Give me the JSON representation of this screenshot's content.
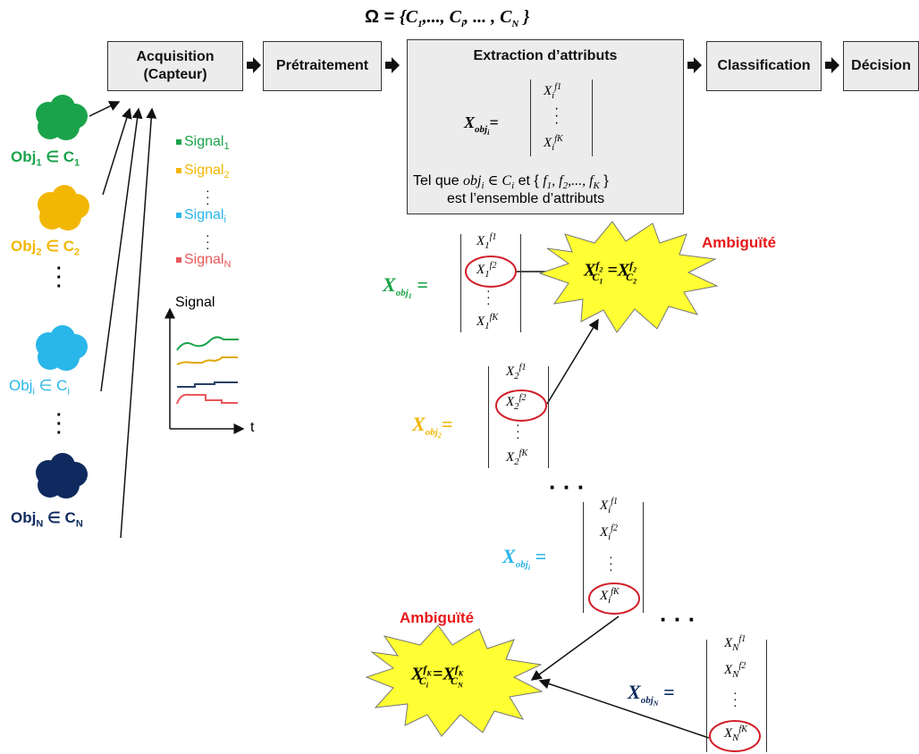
{
  "omega": {
    "lhs": "Ω =",
    "set": "{C1,..., Ci, ... , CN }"
  },
  "pipeline": {
    "acquisition": "Acquisition",
    "acquisition_sub": "(Capteur)",
    "pretraitement": "Prétraitement",
    "extraction": "Extraction d’attributs",
    "classification": "Classification",
    "decision": "Décision"
  },
  "extraction_box": {
    "vector_label": "Xobji=",
    "top": "Xif1",
    "bottom": "XifK",
    "caption_line1_pre": "Tel que",
    "caption_line1_math": "obji ∈ Ci",
    "caption_line1_mid": "et {",
    "caption_line1_set": "f1, f2,..., fK",
    "caption_line1_end": "}",
    "caption_line2": "est l’ensemble d’attributs"
  },
  "objects": [
    {
      "name": "Obj",
      "sub": "1",
      "cls": "C",
      "csub": "1",
      "color": "#1aa34a"
    },
    {
      "name": "Obj",
      "sub": "2",
      "cls": "C",
      "csub": "2",
      "color": "#f2b705"
    },
    {
      "name": "Obj",
      "sub": "i",
      "cls": "C",
      "csub": "i",
      "color": "#29b6e8"
    },
    {
      "name": "Obj",
      "sub": "N",
      "cls": "C",
      "csub": "N",
      "color": "#0f2a5e"
    }
  ],
  "signals": [
    {
      "name": "Signal",
      "sub": "1",
      "color": "#1aa34a"
    },
    {
      "name": "Signal",
      "sub": "2",
      "color": "#f2b705"
    },
    {
      "name": "Signal",
      "sub": "i",
      "color": "#29b6e8"
    },
    {
      "name": "Signal",
      "sub": "N",
      "color": "#e8585a"
    }
  ],
  "plot": {
    "ylabel": "Signal",
    "xlabel": "t"
  },
  "vectors": [
    {
      "label": "X",
      "sub": "obj1",
      "color": "#1aa34a",
      "items": [
        "X1f1",
        "X1f2",
        "X1fK"
      ]
    },
    {
      "label": "X",
      "sub": "obj2",
      "color": "#f2b705",
      "items": [
        "X2f1",
        "X2f2",
        "X2fK"
      ]
    },
    {
      "label": "X",
      "sub": "obji",
      "color": "#29b6e8",
      "items": [
        "Xif1",
        "Xif2",
        "XifK"
      ]
    },
    {
      "label": "X",
      "sub": "objN",
      "color": "#0f2a5e",
      "items": [
        "XNf1",
        "XNf2",
        "XNfK"
      ]
    }
  ],
  "ambiguity": {
    "label": "Ambiguïté",
    "color": "#e8181a",
    "burst1": "XC1f2=XC2f2",
    "burst2": "XCifK=XCNfK"
  },
  "colors": {
    "box": "#ececec",
    "burst": "#ffff33",
    "circle": "#d21f2a"
  }
}
